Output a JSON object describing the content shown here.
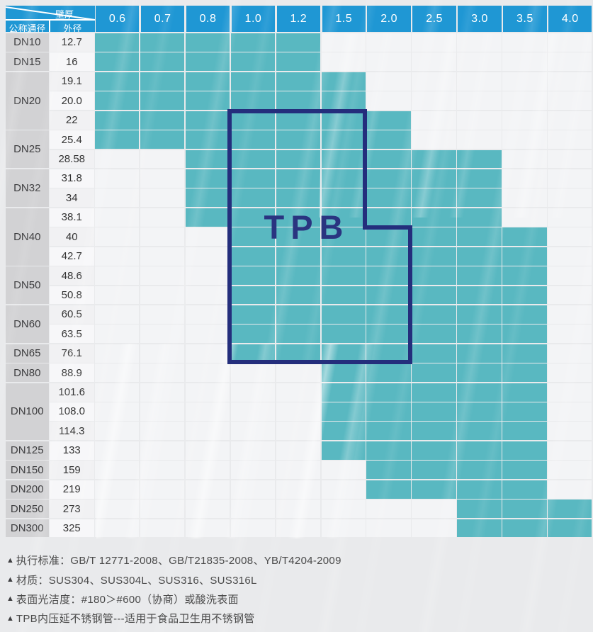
{
  "chart_data": {
    "type": "table",
    "description": "Stainless steel pipe availability matrix: teal cells mark wall-thickness options per outer diameter",
    "columns_label": "壁厚",
    "dn_label": "公称通径",
    "od_label": "外径",
    "thickness_columns": [
      "0.6",
      "0.7",
      "0.8",
      "1.0",
      "1.2",
      "1.5",
      "2.0",
      "2.5",
      "3.0",
      "3.5",
      "4.0"
    ],
    "groups": [
      {
        "dn": "DN10",
        "rows": [
          {
            "od": "12.7",
            "range": [
              "0.6",
              "1.2"
            ]
          }
        ]
      },
      {
        "dn": "DN15",
        "rows": [
          {
            "od": "16",
            "range": [
              "0.6",
              "1.2"
            ]
          }
        ]
      },
      {
        "dn": "DN20",
        "rows": [
          {
            "od": "19.1",
            "range": [
              "0.6",
              "1.5"
            ]
          },
          {
            "od": "20.0",
            "range": [
              "0.6",
              "1.5"
            ]
          },
          {
            "od": "22",
            "range": [
              "0.6",
              "2.0"
            ]
          }
        ]
      },
      {
        "dn": "DN25",
        "rows": [
          {
            "od": "25.4",
            "range": [
              "0.6",
              "2.0"
            ]
          },
          {
            "od": "28.58",
            "range": [
              "0.8",
              "3.0"
            ]
          }
        ]
      },
      {
        "dn": "DN32",
        "rows": [
          {
            "od": "31.8",
            "range": [
              "0.8",
              "3.0"
            ]
          },
          {
            "od": "34",
            "range": [
              "0.8",
              "3.0"
            ]
          }
        ]
      },
      {
        "dn": "DN40",
        "rows": [
          {
            "od": "38.1",
            "range": [
              "0.8",
              "3.0"
            ]
          },
          {
            "od": "40",
            "range": [
              "1.0",
              "3.5"
            ]
          },
          {
            "od": "42.7",
            "range": [
              "1.0",
              "3.5"
            ]
          }
        ]
      },
      {
        "dn": "DN50",
        "rows": [
          {
            "od": "48.6",
            "range": [
              "1.0",
              "3.5"
            ]
          },
          {
            "od": "50.8",
            "range": [
              "1.0",
              "3.5"
            ]
          }
        ]
      },
      {
        "dn": "DN60",
        "rows": [
          {
            "od": "60.5",
            "range": [
              "1.0",
              "3.5"
            ]
          },
          {
            "od": "63.5",
            "range": [
              "1.0",
              "3.5"
            ]
          }
        ]
      },
      {
        "dn": "DN65",
        "rows": [
          {
            "od": "76.1",
            "range": [
              "1.0",
              "3.5"
            ]
          }
        ]
      },
      {
        "dn": "DN80",
        "rows": [
          {
            "od": "88.9",
            "range": [
              "1.5",
              "3.5"
            ]
          }
        ]
      },
      {
        "dn": "DN100",
        "rows": [
          {
            "od": "101.6",
            "range": [
              "1.5",
              "3.5"
            ]
          },
          {
            "od": "108.0",
            "range": [
              "1.5",
              "3.5"
            ]
          },
          {
            "od": "114.3",
            "range": [
              "1.5",
              "3.5"
            ]
          }
        ]
      },
      {
        "dn": "DN125",
        "rows": [
          {
            "od": "133",
            "range": [
              "1.5",
              "3.5"
            ]
          }
        ]
      },
      {
        "dn": "DN150",
        "rows": [
          {
            "od": "159",
            "range": [
              "2.0",
              "3.5"
            ]
          }
        ]
      },
      {
        "dn": "DN200",
        "rows": [
          {
            "od": "219",
            "range": [
              "2.0",
              "3.5"
            ]
          }
        ]
      },
      {
        "dn": "DN250",
        "rows": [
          {
            "od": "273",
            "range": [
              "3.0",
              "4.0"
            ]
          }
        ]
      },
      {
        "dn": "DN300",
        "rows": [
          {
            "od": "325",
            "range": [
              "3.0",
              "4.0"
            ]
          }
        ]
      }
    ],
    "overlay_box_label": "TPB"
  },
  "notes_marker": "▲",
  "notes": [
    "执行标准：GB/T 12771-2008、GB/T21835-2008、YB/T4204-2009",
    "材质：SUS304、SUS304L、SUS316、SUS316L",
    "表面光洁度：#180＞#600（协商）或酸洗表面",
    "TPB内压延不锈钢管---适用于食品卫生用不锈钢管"
  ],
  "colors": {
    "header_blue": "#1f97d4",
    "cell_teal": "#59b8c1",
    "box_navy": "#242e7c",
    "dn_gray": "#d2d2d4",
    "empty_cell": "#f3f4f6",
    "note_text": "#4a4a4a"
  }
}
